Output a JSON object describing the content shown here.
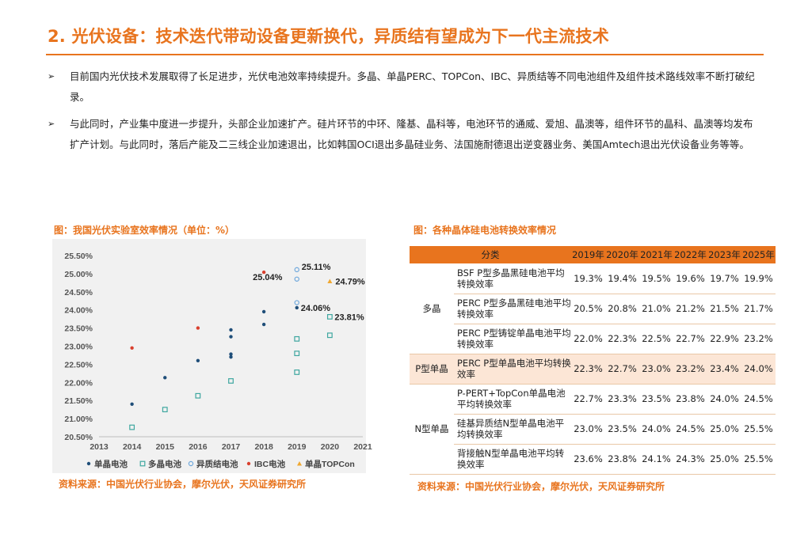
{
  "page": {
    "title": "2. 光伏设备：技术迭代带动设备更新换代，异质结有望成为下一代主流技术",
    "bullet_marker": "➢",
    "bullets": [
      "目前国内光伏技术发展取得了长足进步，光伏电池效率持续提升。多晶、单晶PERC、TOPCon、IBC、异质结等不同电池组件及组件技术路线效率不断打破纪录。",
      "与此同时，产业集中度进一步提升，头部企业加速扩产。硅片环节的中环、隆基、晶科等，电池环节的通威、爱旭、晶澳等，组件环节的晶科、晶澳等均发布扩产计划。与此同时，落后产能及二三线企业加速退出，比如韩国OCI退出多晶硅业务、法国施耐德退出逆变器业务、美国Amtech退出光伏设备业务等等。"
    ],
    "chart_caption": "图：我国光伏实验室效率情况（单位：%）",
    "chart_source": "资料来源：中国光伏行业协会，摩尔光伏，天风证券研究所",
    "table_caption": "图：各种晶体硅电池转换效率情况",
    "table_source": "资料来源：中国光伏行业协会，摩尔光伏，天风证券研究所"
  },
  "chart_data": {
    "type": "scatter",
    "xlim": [
      2013,
      2021
    ],
    "ylim": [
      20.5,
      25.5
    ],
    "x_ticks": [
      "2013",
      "2014",
      "2015",
      "2016",
      "2017",
      "2018",
      "2019",
      "2020",
      "2021"
    ],
    "y_ticks": [
      "20.50%",
      "21.00%",
      "21.50%",
      "22.00%",
      "22.50%",
      "23.00%",
      "23.50%",
      "24.00%",
      "24.50%",
      "25.00%",
      "25.50%"
    ],
    "legend_position": "bottom",
    "grid": false,
    "series": [
      {
        "name": "单晶电池",
        "marker": "dot",
        "color": "#1F4E79",
        "points": [
          [
            2014,
            21.4
          ],
          [
            2015,
            22.13
          ],
          [
            2016,
            22.6
          ],
          [
            2017,
            22.7
          ],
          [
            2017,
            22.78
          ],
          [
            2017,
            23.26
          ],
          [
            2017,
            23.45
          ],
          [
            2018,
            23.6
          ],
          [
            2018,
            23.95
          ],
          [
            2019,
            24.06
          ]
        ]
      },
      {
        "name": "多晶电池",
        "marker": "square",
        "color": "#3FA7A0",
        "points": [
          [
            2014,
            20.76
          ],
          [
            2015,
            21.25
          ],
          [
            2016,
            21.63
          ],
          [
            2017,
            22.04
          ],
          [
            2019,
            22.28
          ],
          [
            2019,
            22.8
          ],
          [
            2019,
            23.2
          ],
          [
            2020,
            23.3
          ],
          [
            2020,
            23.81
          ]
        ]
      },
      {
        "name": "异质结电池",
        "marker": "ring",
        "color": "#6FA8DC",
        "points": [
          [
            2019,
            24.2
          ],
          [
            2019,
            24.85
          ],
          [
            2019,
            25.11
          ]
        ]
      },
      {
        "name": "IBC电池",
        "marker": "dot",
        "color": "#D9402E",
        "points": [
          [
            2014,
            22.95
          ],
          [
            2016,
            23.5
          ],
          [
            2018,
            25.04
          ]
        ]
      },
      {
        "name": "单晶TOPCon",
        "marker": "triangle",
        "color": "#F0A830",
        "points": [
          [
            2020,
            24.79
          ]
        ]
      }
    ],
    "annotations": [
      {
        "x": 2019,
        "y": 25.11,
        "text": "25.11%"
      },
      {
        "x": 2018,
        "y": 25.04,
        "text": "25.04%"
      },
      {
        "x": 2020,
        "y": 24.79,
        "text": "24.79%"
      },
      {
        "x": 2019,
        "y": 24.06,
        "text": "24.06%"
      },
      {
        "x": 2020,
        "y": 23.81,
        "text": "23.81%"
      }
    ]
  },
  "table": {
    "header_category": "分类",
    "years": [
      "2019年",
      "2020年",
      "2021年",
      "2022年",
      "2023年",
      "2025年"
    ],
    "groups": [
      {
        "name": "多晶",
        "rows": [
          {
            "tech": "BSF P型多晶黑硅电池平均转换效率",
            "values": [
              "19.3%",
              "19.4%",
              "19.5%",
              "19.6%",
              "19.7%",
              "19.9%"
            ]
          },
          {
            "tech": "PERC P型多晶黑硅电池平均转换效率",
            "values": [
              "20.5%",
              "20.8%",
              "21.0%",
              "21.2%",
              "21.5%",
              "21.7%"
            ]
          },
          {
            "tech": "PERC P型铸锭单晶电池平均转换效率",
            "values": [
              "22.0%",
              "22.3%",
              "22.5%",
              "22.7%",
              "22.9%",
              "23.2%"
            ]
          }
        ]
      },
      {
        "name": "P型单晶",
        "highlight": true,
        "rows": [
          {
            "tech": "PERC P型单晶电池平均转换效率",
            "values": [
              "22.3%",
              "22.7%",
              "23.0%",
              "23.2%",
              "23.4%",
              "24.0%"
            ]
          }
        ]
      },
      {
        "name": "N型单晶",
        "rows": [
          {
            "tech": "P-PERT+TopCon单晶电池平均转换效率",
            "values": [
              "22.7%",
              "23.3%",
              "23.5%",
              "23.8%",
              "24.0%",
              "24.5%"
            ]
          },
          {
            "tech": "硅基异质结N型单晶电池平均转换效率",
            "values": [
              "23.0%",
              "23.5%",
              "24.0%",
              "24.5%",
              "25.0%",
              "25.5%"
            ]
          },
          {
            "tech": "背接触N型单晶电池平均转换效率",
            "values": [
              "23.6%",
              "23.8%",
              "24.1%",
              "24.3%",
              "25.0%",
              "25.5%"
            ]
          }
        ]
      }
    ]
  }
}
